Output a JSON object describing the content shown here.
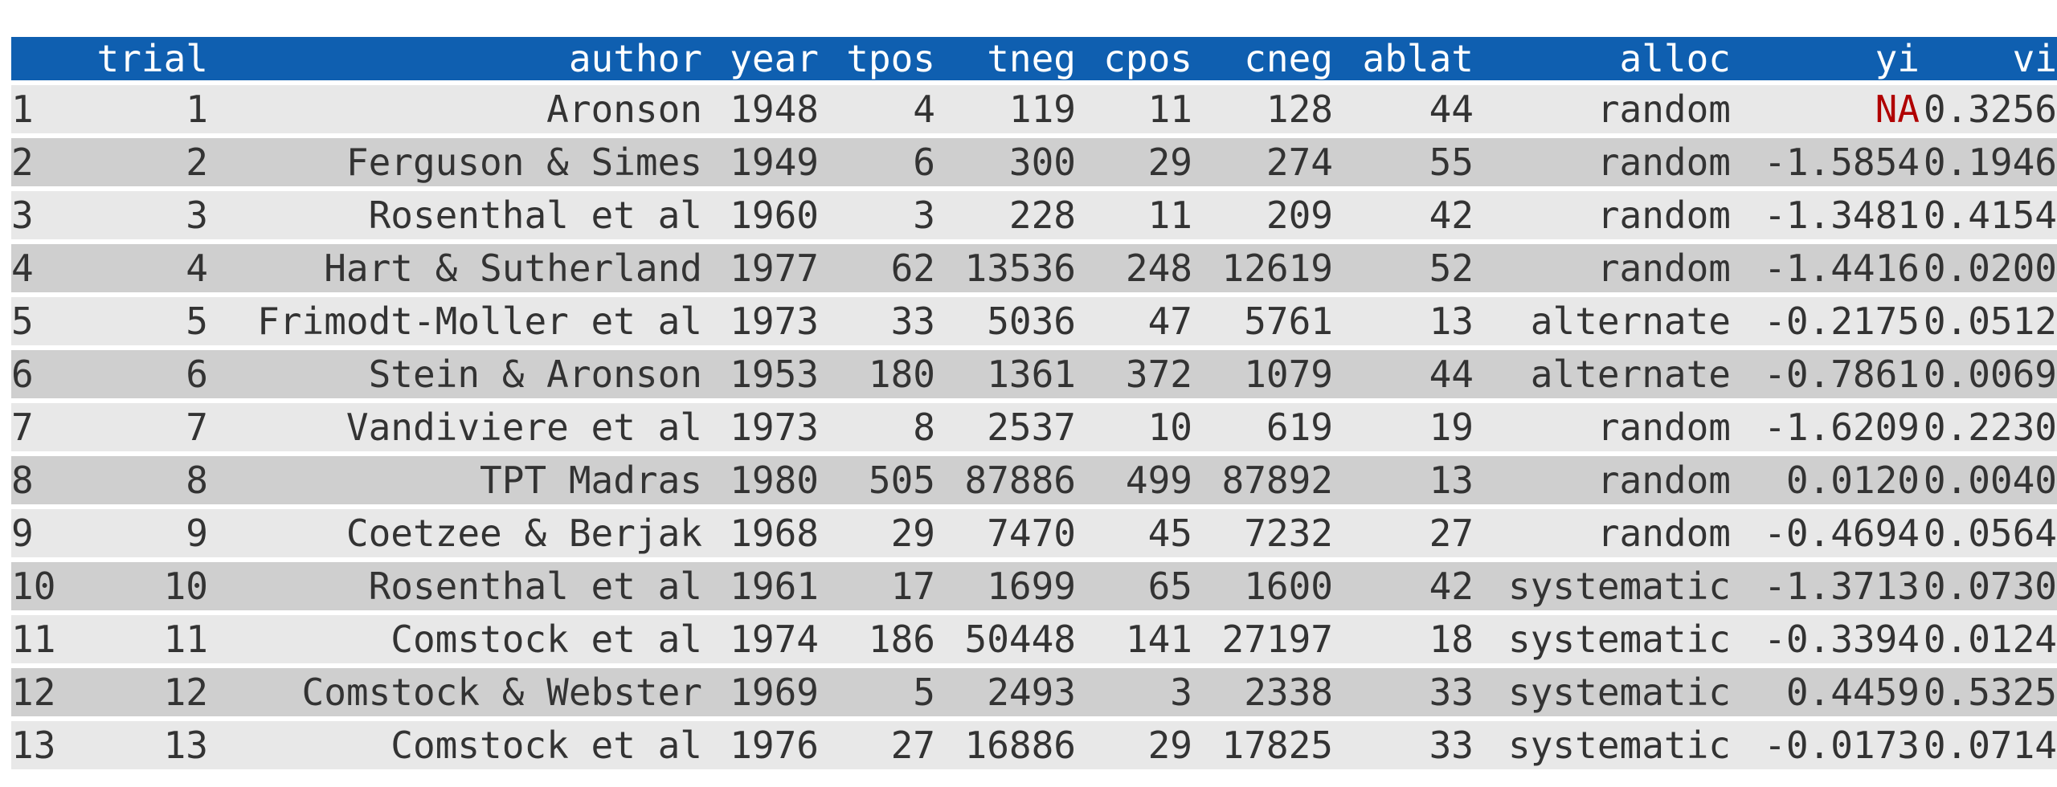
{
  "table": {
    "columns": [
      "",
      "trial",
      "author",
      "year",
      "tpos",
      "tneg",
      "cpos",
      "cneg",
      "ablat",
      "alloc",
      "yi",
      "vi"
    ],
    "rows": [
      [
        "1",
        "1",
        "Aronson",
        "1948",
        "4",
        "119",
        "11",
        "128",
        "44",
        "random",
        "NA",
        "0.3256"
      ],
      [
        "2",
        "2",
        "Ferguson & Simes",
        "1949",
        "6",
        "300",
        "29",
        "274",
        "55",
        "random",
        "-1.5854",
        "0.1946"
      ],
      [
        "3",
        "3",
        "Rosenthal et al",
        "1960",
        "3",
        "228",
        "11",
        "209",
        "42",
        "random",
        "-1.3481",
        "0.4154"
      ],
      [
        "4",
        "4",
        "Hart & Sutherland",
        "1977",
        "62",
        "13536",
        "248",
        "12619",
        "52",
        "random",
        "-1.4416",
        "0.0200"
      ],
      [
        "5",
        "5",
        "Frimodt-Moller et al",
        "1973",
        "33",
        "5036",
        "47",
        "5761",
        "13",
        "alternate",
        "-0.2175",
        "0.0512"
      ],
      [
        "6",
        "6",
        "Stein & Aronson",
        "1953",
        "180",
        "1361",
        "372",
        "1079",
        "44",
        "alternate",
        "-0.7861",
        "0.0069"
      ],
      [
        "7",
        "7",
        "Vandiviere et al",
        "1973",
        "8",
        "2537",
        "10",
        "619",
        "19",
        "random",
        "-1.6209",
        "0.2230"
      ],
      [
        "8",
        "8",
        "TPT Madras",
        "1980",
        "505",
        "87886",
        "499",
        "87892",
        "13",
        "random",
        "0.0120",
        "0.0040"
      ],
      [
        "9",
        "9",
        "Coetzee & Berjak",
        "1968",
        "29",
        "7470",
        "45",
        "7232",
        "27",
        "random",
        "-0.4694",
        "0.0564"
      ],
      [
        "10",
        "10",
        "Rosenthal et al",
        "1961",
        "17",
        "1699",
        "65",
        "1600",
        "42",
        "systematic",
        "-1.3713",
        "0.0730"
      ],
      [
        "11",
        "11",
        "Comstock et al",
        "1974",
        "186",
        "50448",
        "141",
        "27197",
        "18",
        "systematic",
        "-0.3394",
        "0.0124"
      ],
      [
        "12",
        "12",
        "Comstock & Webster",
        "1969",
        "5",
        "2493",
        "3",
        "2338",
        "33",
        "systematic",
        "0.4459",
        "0.5325"
      ],
      [
        "13",
        "13",
        "Comstock et al",
        "1976",
        "27",
        "16886",
        "29",
        "17825",
        "33",
        "systematic",
        "-0.0173",
        "0.0714"
      ]
    ],
    "na_value": "NA",
    "colors": {
      "header_bg": "#0f5fb0",
      "header_text": "#ffffff",
      "row_odd": "#e8e8e8",
      "row_even": "#cfcfcf",
      "na_text": "#b00000"
    }
  }
}
